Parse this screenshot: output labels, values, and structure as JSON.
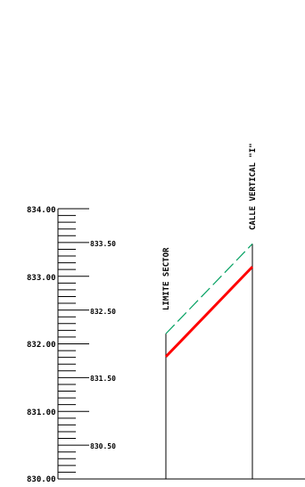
{
  "scale": {
    "major_labels": [
      "834.00",
      "833.00",
      "832.00",
      "831.00",
      "830.00"
    ],
    "half_labels": [
      "833.50",
      "832.50",
      "831.50",
      "830.50"
    ]
  },
  "profile": {
    "left_label": "LIMITE SECTOR",
    "right_label": "CALLE VERTICAL \"I\"",
    "red_line": {
      "start_elev": 831.81,
      "end_elev": 833.14,
      "color": "#ff0000"
    },
    "green_dashed_line": {
      "start_elev": 832.15,
      "end_elev": 833.48,
      "color": "#00a060"
    }
  }
}
